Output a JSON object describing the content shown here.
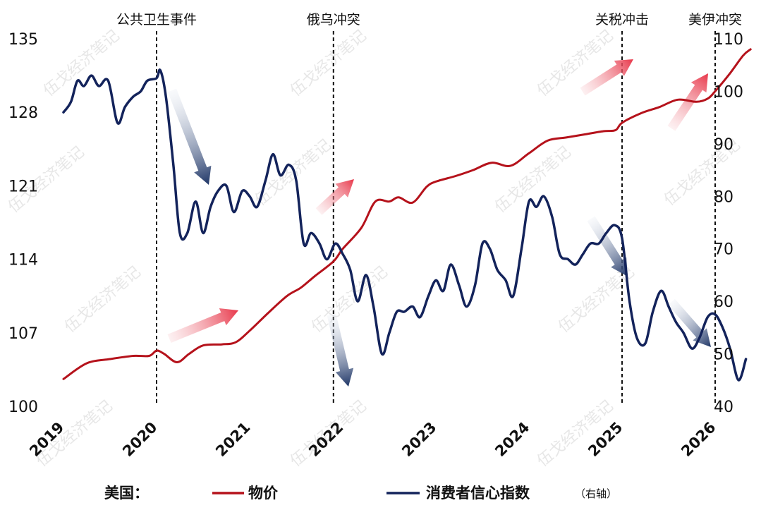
{
  "legend": {
    "prefix": "美国：",
    "price_label": "物价",
    "confidence_label": "消费者信心指数",
    "confidence_note": "（右轴）"
  },
  "watermark": "伍戈经济笔记",
  "colors": {
    "price": "#b5121b",
    "confidence": "#13235b",
    "arrow_up": "#e8374a",
    "arrow_down": "#1e3566"
  },
  "chart_data": {
    "type": "line",
    "x_axis": {
      "range": [
        2019,
        2026.5
      ],
      "ticks": [
        "2019",
        "2020",
        "2021",
        "2022",
        "2023",
        "2024",
        "2025",
        "2026"
      ]
    },
    "y_left": {
      "range": [
        100,
        135
      ],
      "ticks": [
        "100",
        "107",
        "114",
        "121",
        "128",
        "135"
      ]
    },
    "y_right": {
      "range": [
        40,
        110
      ],
      "ticks": [
        "40",
        "50",
        "60",
        "70",
        "80",
        "90",
        "100",
        "110"
      ]
    },
    "events": [
      {
        "label": "公共卫生事件",
        "x": 2020.0
      },
      {
        "label": "俄乌冲突",
        "x": 2021.9
      },
      {
        "label": "关税冲击",
        "x": 2025.0
      },
      {
        "label": "美伊冲突",
        "x": 2026.0
      }
    ],
    "series": [
      {
        "name": "物价",
        "axis": "left",
        "points": [
          [
            2019.0,
            102.6
          ],
          [
            2019.25,
            104.1
          ],
          [
            2019.5,
            104.5
          ],
          [
            2019.75,
            104.8
          ],
          [
            2019.92,
            104.8
          ],
          [
            2020.0,
            105.3
          ],
          [
            2020.08,
            105.0
          ],
          [
            2020.22,
            104.2
          ],
          [
            2020.35,
            105.0
          ],
          [
            2020.5,
            105.8
          ],
          [
            2020.7,
            105.9
          ],
          [
            2020.85,
            106.1
          ],
          [
            2021.0,
            107.2
          ],
          [
            2021.2,
            108.9
          ],
          [
            2021.4,
            110.5
          ],
          [
            2021.55,
            111.3
          ],
          [
            2021.7,
            112.4
          ],
          [
            2021.9,
            113.8
          ],
          [
            2022.0,
            115.0
          ],
          [
            2022.2,
            117.0
          ],
          [
            2022.35,
            119.5
          ],
          [
            2022.5,
            119.5
          ],
          [
            2022.6,
            119.9
          ],
          [
            2022.75,
            119.4
          ],
          [
            2022.9,
            120.9
          ],
          [
            2023.0,
            121.4
          ],
          [
            2023.2,
            121.9
          ],
          [
            2023.4,
            122.5
          ],
          [
            2023.6,
            123.2
          ],
          [
            2023.8,
            122.9
          ],
          [
            2024.0,
            124.1
          ],
          [
            2024.2,
            125.3
          ],
          [
            2024.4,
            125.6
          ],
          [
            2024.6,
            125.9
          ],
          [
            2024.8,
            126.2
          ],
          [
            2024.93,
            126.3
          ],
          [
            2025.0,
            127.0
          ],
          [
            2025.2,
            127.9
          ],
          [
            2025.4,
            128.5
          ],
          [
            2025.6,
            129.2
          ],
          [
            2025.8,
            129.0
          ],
          [
            2025.92,
            129.3
          ],
          [
            2026.0,
            130.0
          ],
          [
            2026.15,
            131.6
          ],
          [
            2026.3,
            133.4
          ],
          [
            2026.38,
            134.0
          ]
        ]
      },
      {
        "name": "消费者信心指数",
        "axis": "right",
        "points": [
          [
            2019.0,
            96
          ],
          [
            2019.08,
            98
          ],
          [
            2019.15,
            102
          ],
          [
            2019.22,
            101
          ],
          [
            2019.3,
            103
          ],
          [
            2019.38,
            101
          ],
          [
            2019.48,
            102
          ],
          [
            2019.58,
            94
          ],
          [
            2019.66,
            97
          ],
          [
            2019.75,
            99
          ],
          [
            2019.83,
            100
          ],
          [
            2019.9,
            102
          ],
          [
            2020.0,
            102.5
          ],
          [
            2020.04,
            104
          ],
          [
            2020.1,
            99
          ],
          [
            2020.18,
            86
          ],
          [
            2020.25,
            73
          ],
          [
            2020.33,
            73
          ],
          [
            2020.42,
            79
          ],
          [
            2020.5,
            73
          ],
          [
            2020.58,
            78
          ],
          [
            2020.66,
            81
          ],
          [
            2020.75,
            82
          ],
          [
            2020.83,
            77
          ],
          [
            2020.92,
            81
          ],
          [
            2021.0,
            80
          ],
          [
            2021.08,
            78
          ],
          [
            2021.17,
            83
          ],
          [
            2021.25,
            88
          ],
          [
            2021.33,
            84
          ],
          [
            2021.42,
            86
          ],
          [
            2021.5,
            83
          ],
          [
            2021.58,
            71
          ],
          [
            2021.66,
            73
          ],
          [
            2021.75,
            71
          ],
          [
            2021.83,
            68
          ],
          [
            2021.92,
            71
          ],
          [
            2022.0,
            69
          ],
          [
            2022.08,
            66
          ],
          [
            2022.16,
            60
          ],
          [
            2022.25,
            65
          ],
          [
            2022.33,
            59
          ],
          [
            2022.42,
            50
          ],
          [
            2022.5,
            54
          ],
          [
            2022.58,
            58
          ],
          [
            2022.66,
            58
          ],
          [
            2022.75,
            59
          ],
          [
            2022.83,
            57
          ],
          [
            2022.92,
            61
          ],
          [
            2023.0,
            64
          ],
          [
            2023.08,
            62
          ],
          [
            2023.16,
            67
          ],
          [
            2023.25,
            63
          ],
          [
            2023.33,
            59
          ],
          [
            2023.42,
            63
          ],
          [
            2023.5,
            71
          ],
          [
            2023.58,
            70
          ],
          [
            2023.66,
            66
          ],
          [
            2023.75,
            64
          ],
          [
            2023.83,
            61
          ],
          [
            2023.92,
            70
          ],
          [
            2024.0,
            79
          ],
          [
            2024.08,
            78
          ],
          [
            2024.16,
            80
          ],
          [
            2024.25,
            76
          ],
          [
            2024.33,
            69
          ],
          [
            2024.42,
            68
          ],
          [
            2024.5,
            67
          ],
          [
            2024.58,
            69
          ],
          [
            2024.66,
            71
          ],
          [
            2024.75,
            71
          ],
          [
            2024.83,
            73
          ],
          [
            2024.92,
            74.5
          ],
          [
            2025.0,
            72
          ],
          [
            2025.08,
            60
          ],
          [
            2025.16,
            53
          ],
          [
            2025.25,
            52
          ],
          [
            2025.33,
            58
          ],
          [
            2025.42,
            62
          ],
          [
            2025.5,
            59
          ],
          [
            2025.58,
            56
          ],
          [
            2025.66,
            54
          ],
          [
            2025.75,
            51
          ],
          [
            2025.83,
            53
          ],
          [
            2025.92,
            57
          ],
          [
            2026.0,
            57.5
          ],
          [
            2026.08,
            55
          ],
          [
            2026.16,
            51
          ],
          [
            2026.25,
            45
          ],
          [
            2026.33,
            49
          ]
        ]
      }
    ]
  }
}
